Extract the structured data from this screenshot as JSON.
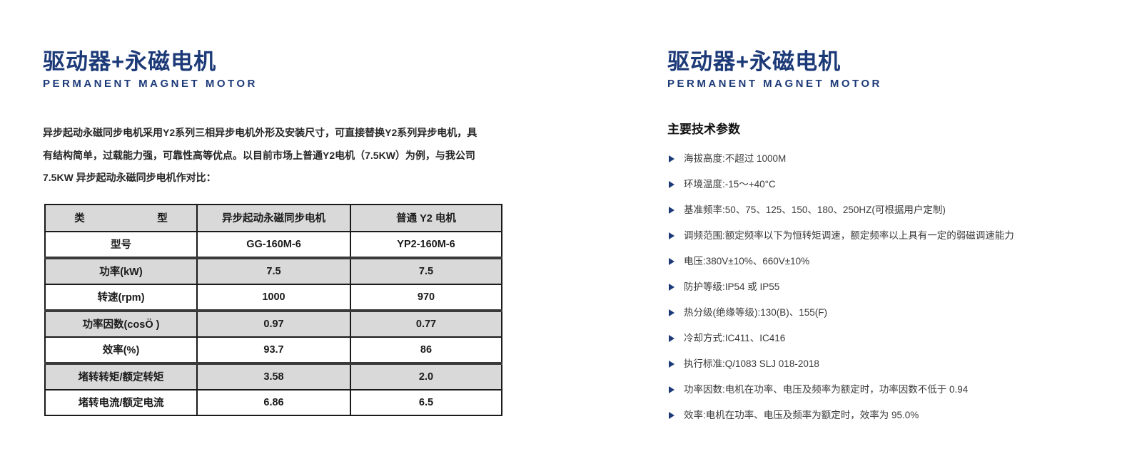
{
  "colors": {
    "brand_navy": "#1d3a78",
    "table_shaded_row_bg": "#d9d9d9",
    "table_border": "#1a1a1a",
    "body_text": "#262626"
  },
  "left_page": {
    "title": "驱动器+永磁电机",
    "subtitle": "PERMANENT MAGNET MOTOR",
    "intro_lines": [
      "异步起动永磁同步电机采用Y2系列三相异步电机外形及安装尺寸，可直接替换Y2系列异步电机，具",
      "有结构简单，过载能力强，可靠性高等优点。以目前市场上普通Y2电机（7.5KW）为例，与我公司",
      "7.5KW 异步起动永磁同步电机作对比："
    ],
    "comparison_table": {
      "columns": [
        "类　　　　　　　型",
        "异步起动永磁同步电机",
        "普通 Y2 电机"
      ],
      "rows": [
        {
          "label": "型号",
          "pm_motor": "GG-160M-6",
          "y2_motor": "YP2-160M-6",
          "shaded": false,
          "group_start": false
        },
        {
          "label": "功率(kW)",
          "pm_motor": "7.5",
          "y2_motor": "7.5",
          "shaded": true,
          "group_start": true
        },
        {
          "label": "转速(rpm)",
          "pm_motor": "1000",
          "y2_motor": "970",
          "shaded": false,
          "group_start": false
        },
        {
          "label": "功率因数(cosÖ )",
          "pm_motor": "0.97",
          "y2_motor": "0.77",
          "shaded": true,
          "group_start": true
        },
        {
          "label": "效率(%)",
          "pm_motor": "93.7",
          "y2_motor": "86",
          "shaded": false,
          "group_start": false
        },
        {
          "label": "堵转转矩/额定转矩",
          "pm_motor": "3.58",
          "y2_motor": "2.0",
          "shaded": true,
          "group_start": true
        },
        {
          "label": "堵转电流/额定电流",
          "pm_motor": "6.86",
          "y2_motor": "6.5",
          "shaded": false,
          "group_start": false
        }
      ]
    }
  },
  "right_page": {
    "title": "驱动器+永磁电机",
    "subtitle": "PERMANENT MAGNET MOTOR",
    "section_heading": "主要技术参数",
    "parameters": [
      "海拔高度:不超过 1000M",
      "环境温度:-15～+40°C",
      "基准频率:50、75、125、150、180、250HZ(可根据用户定制)",
      "调频范围:额定频率以下为恒转矩调速，额定频率以上具有一定的弱磁调速能力",
      "电压:380V±10%、660V±10%",
      "防护等级:IP54 或 IP55",
      "热分级(绝缘等级):130(B)、155(F)",
      "冷却方式:IC411、IC416",
      "执行标准:Q/1083 SLJ 018-2018",
      "功率因数:电机在功率、电压及频率为额定时，功率因数不低于 0.94",
      "效率:电机在功率、电压及频率为额定时，效率为 95.0%"
    ]
  }
}
